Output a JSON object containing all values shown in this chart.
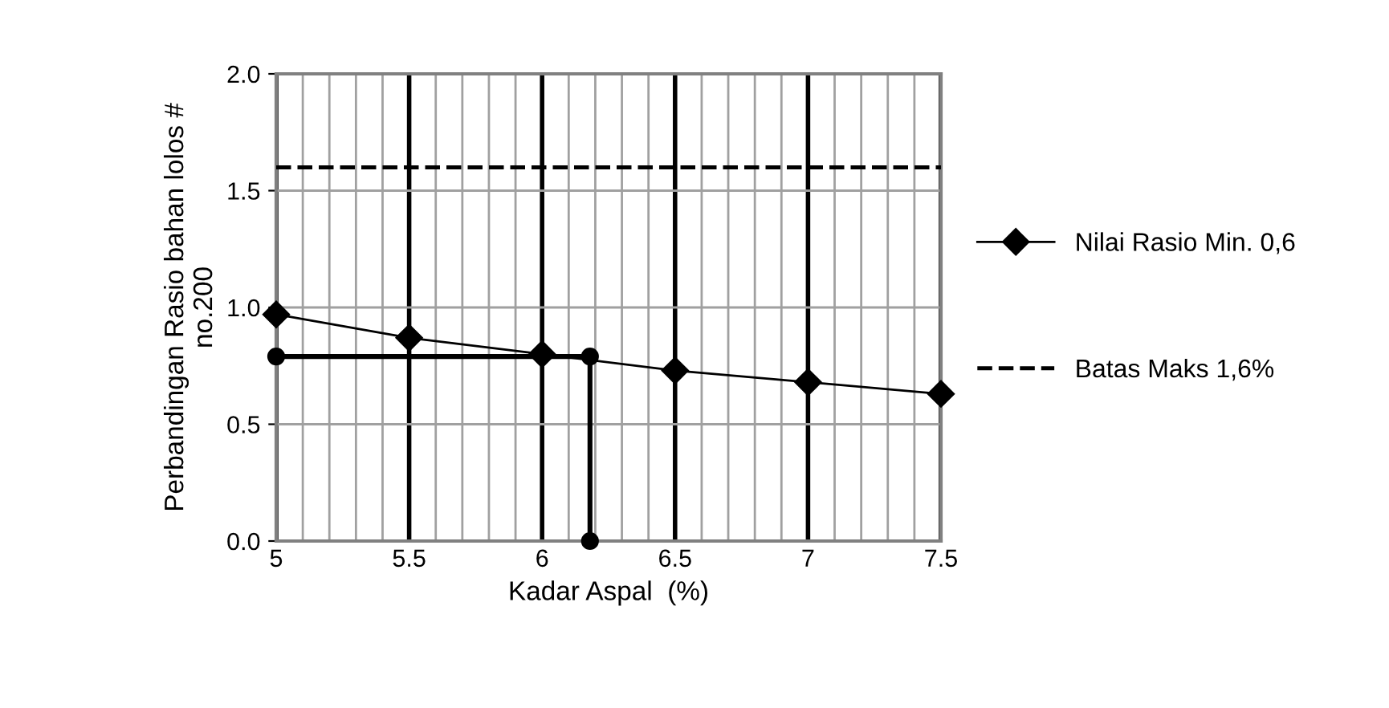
{
  "chart_data": {
    "type": "line",
    "xlabel": "Kadar Aspal  (%)",
    "ylabel": "Perbandingan Rasio bahan lolos #\nno.200",
    "xlim": [
      5,
      7.5
    ],
    "ylim": [
      0,
      2.0
    ],
    "xticks": [
      5,
      {
        "value": 5.1,
        "label": null
      },
      {
        "value": 5.2,
        "label": null
      },
      {
        "value": 5.3,
        "label": null
      },
      {
        "value": 5.4,
        "label": null
      },
      5.5,
      {
        "value": 5.6,
        "label": null
      },
      {
        "value": 5.7,
        "label": null
      },
      {
        "value": 5.8,
        "label": null
      },
      {
        "value": 5.9,
        "label": null
      },
      6,
      {
        "value": 6.1,
        "label": null
      },
      {
        "value": 6.2,
        "label": null
      },
      {
        "value": 6.3,
        "label": null
      },
      {
        "value": 6.4,
        "label": null
      },
      6.5,
      {
        "value": 6.6,
        "label": null
      },
      {
        "value": 6.7,
        "label": null
      },
      {
        "value": 6.8,
        "label": null
      },
      {
        "value": 6.9,
        "label": null
      },
      7,
      {
        "value": 7.1,
        "label": null
      },
      {
        "value": 7.2,
        "label": null
      },
      {
        "value": 7.3,
        "label": null
      },
      {
        "value": 7.4,
        "label": null
      },
      7.5
    ],
    "yticks": [
      {
        "value": 0,
        "label": "0.0"
      },
      0.5,
      {
        "value": 1,
        "label": "1.0"
      },
      1.5,
      {
        "value": 2,
        "label": "2.0"
      }
    ],
    "grid": true,
    "legend": "right",
    "series": [
      {
        "name": "Nilai Rasio Min. 0,6",
        "color": "#000000",
        "x": [
          5,
          5.5,
          6,
          6.5,
          7,
          7.5
        ],
        "values": [
          0.97,
          0.87,
          0.8,
          0.73,
          0.68,
          0.63
        ],
        "marker": "diamond",
        "line_style": "solid"
      },
      {
        "name": "Batas Maks 1,6%",
        "color": "#000000",
        "x": [
          5,
          7.5
        ],
        "values": [
          1.6,
          1.6
        ],
        "marker": "none",
        "line_style": "dashed"
      },
      {
        "color": "#000000",
        "x": [
          5,
          6.18,
          6.18
        ],
        "values": [
          0.79,
          0.79,
          0
        ],
        "marker": "circle",
        "line_style": "solid"
      }
    ]
  }
}
